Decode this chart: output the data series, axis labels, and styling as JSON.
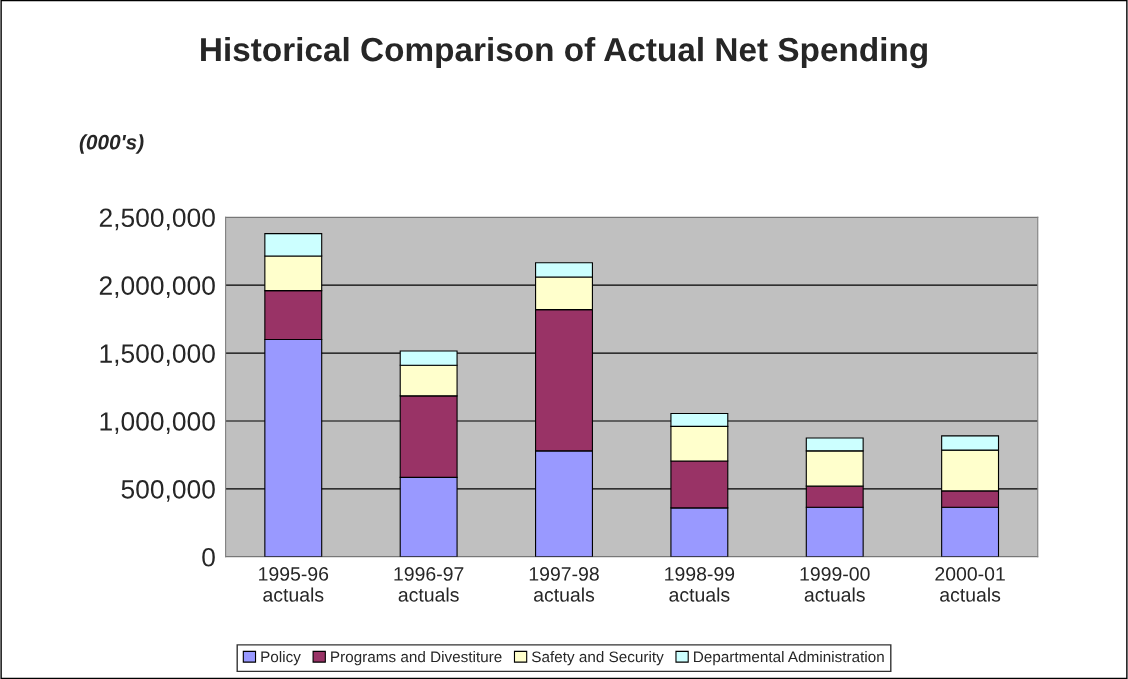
{
  "chart_data": {
    "type": "bar",
    "title": "Historical Comparison of Actual Net Spending",
    "ylabel": "(000's)",
    "categories": [
      "1995-96\nactuals",
      "1996-97\nactuals",
      "1997-98\nactuals",
      "1998-99\nactuals",
      "1999-00\nactuals",
      "2000-01\nactuals"
    ],
    "stacked": true,
    "series": [
      {
        "name": "Policy",
        "color": "#9999ff",
        "values": [
          1600000,
          585000,
          780000,
          360000,
          365000,
          365000
        ]
      },
      {
        "name": "Programs and Divestiture",
        "color": "#993366",
        "values": [
          360000,
          600000,
          1040000,
          345000,
          155000,
          120000
        ]
      },
      {
        "name": "Safety and Security",
        "color": "#ffffcc",
        "values": [
          255000,
          225000,
          240000,
          255000,
          260000,
          300000
        ]
      },
      {
        "name": "Departmental Administration",
        "color": "#ccffff",
        "values": [
          165000,
          105000,
          105000,
          95000,
          95000,
          105000
        ]
      }
    ],
    "ylim": [
      0,
      2500000
    ],
    "yticks": [
      {
        "value": 0,
        "label": "0"
      },
      {
        "value": 500000,
        "label": "500,000"
      },
      {
        "value": 1000000,
        "label": "1,000,000"
      },
      {
        "value": 1500000,
        "label": "1,500,000"
      },
      {
        "value": 2000000,
        "label": "2,000,000"
      },
      {
        "value": 2500000,
        "label": "2,500,000"
      }
    ],
    "grid": "y",
    "legend": "bottom"
  }
}
